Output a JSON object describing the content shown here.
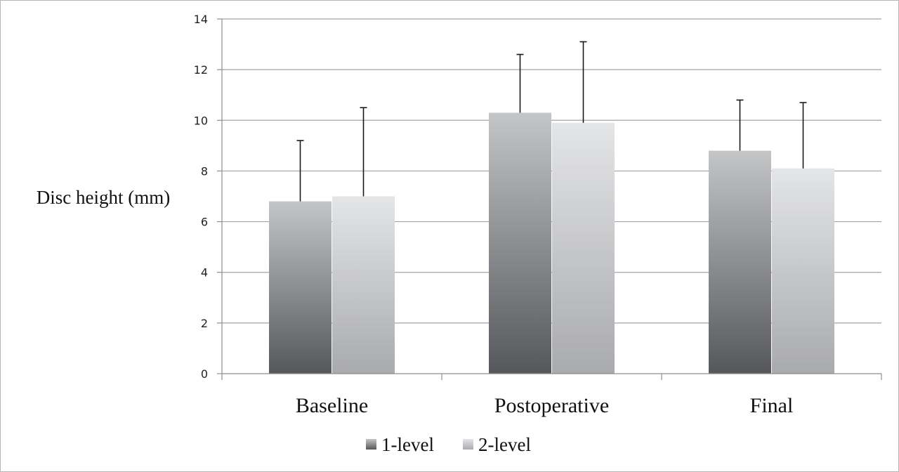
{
  "chart_data": {
    "type": "bar",
    "title": "",
    "xlabel": "",
    "ylabel": "Disc height (mm)",
    "categories": [
      "Baseline",
      "Postoperative",
      "Final"
    ],
    "ylim": [
      0,
      14
    ],
    "yticks": [
      0,
      2,
      4,
      6,
      8,
      10,
      12,
      14
    ],
    "grid": true,
    "legend_position": "bottom",
    "error_bars": "upper",
    "series": [
      {
        "name": "1-level",
        "values": [
          6.8,
          10.3,
          8.8
        ],
        "errors": [
          2.4,
          2.3,
          2.0
        ],
        "colors": {
          "top": "#c4c5c7",
          "bottom": "#56575a"
        }
      },
      {
        "name": "2-level",
        "values": [
          7.0,
          9.9,
          8.1
        ],
        "errors": [
          3.5,
          3.2,
          2.6
        ],
        "colors": {
          "top": "#e4e5e7",
          "bottom": "#a9aaad"
        }
      }
    ]
  }
}
